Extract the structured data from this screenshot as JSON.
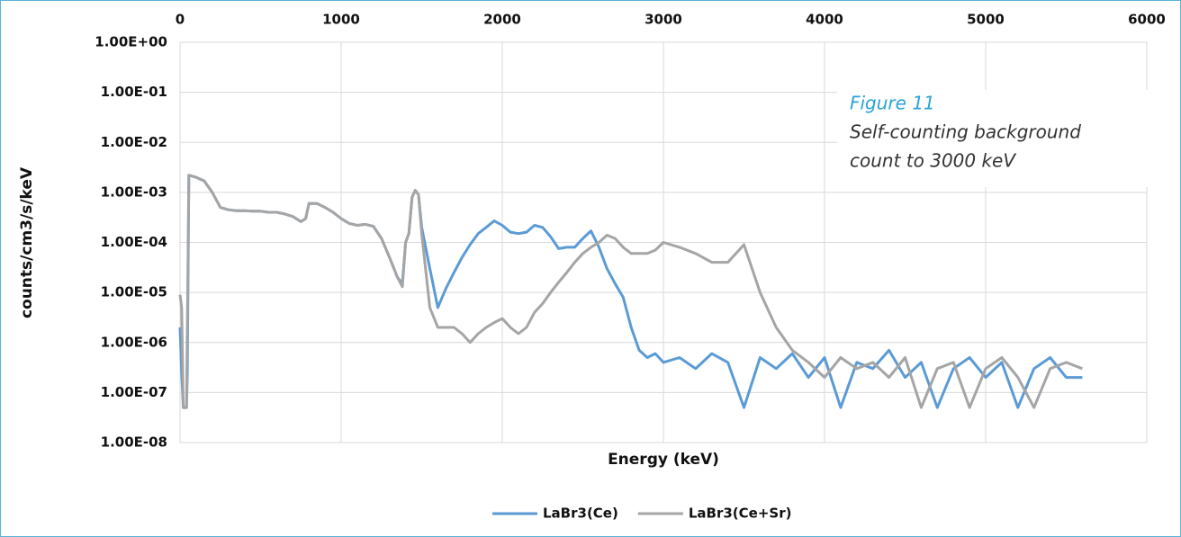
{
  "chart_data": {
    "type": "line",
    "x_label": "Energy (keV)",
    "y_label": "counts/cm3/s/keV",
    "annotation": {
      "title": "Figure 11",
      "lines": [
        "Self-counting background",
        "count to 3000 keV"
      ]
    },
    "log_y": true,
    "grid": true,
    "x_axis_position": "top",
    "legend": "bottom",
    "xlim": [
      0,
      6000
    ],
    "xticks": [
      0,
      1000,
      2000,
      3000,
      4000,
      5000,
      6000
    ],
    "ylim": [
      1e-08,
      1
    ],
    "yticks": [
      {
        "value": 1,
        "label": "1.00E+00"
      },
      {
        "value": 0.1,
        "label": "1.00E-01"
      },
      {
        "value": 0.01,
        "label": "1.00E-02"
      },
      {
        "value": 0.001,
        "label": "1.00E-03"
      },
      {
        "value": 0.0001,
        "label": "1.00E-04"
      },
      {
        "value": 1e-05,
        "label": "1.00E-05"
      },
      {
        "value": 1e-06,
        "label": "1.00E-06"
      },
      {
        "value": 1e-07,
        "label": "1.00E-07"
      },
      {
        "value": 1e-08,
        "label": "1.00E-08"
      }
    ],
    "x": [
      0,
      10,
      20,
      40,
      45,
      55,
      100,
      150,
      200,
      250,
      300,
      350,
      400,
      450,
      500,
      550,
      600,
      650,
      700,
      750,
      780,
      800,
      850,
      900,
      950,
      1000,
      1050,
      1100,
      1150,
      1200,
      1250,
      1300,
      1350,
      1380,
      1400,
      1420,
      1440,
      1460,
      1480,
      1500,
      1550,
      1600,
      1650,
      1700,
      1750,
      1800,
      1850,
      1900,
      1950,
      2000,
      2050,
      2100,
      2150,
      2200,
      2250,
      2300,
      2350,
      2400,
      2450,
      2500,
      2550,
      2600,
      2650,
      2700,
      2750,
      2800,
      2850,
      2900,
      2950,
      3000,
      3100,
      3200,
      3300,
      3400,
      3500,
      3600,
      3700,
      3800,
      3900,
      4000,
      4100,
      4200,
      4300,
      4400,
      4500,
      4600,
      4700,
      4800,
      4900,
      5000,
      5100,
      5200,
      5300,
      5400,
      5500,
      5600
    ],
    "series": [
      {
        "name": "LaBr3(Ce)",
        "color": "#5b9bd5",
        "values": [
          2e-06,
          2.5e-07,
          5e-08,
          5e-08,
          2.5e-07,
          0.0022,
          0.002,
          0.0017,
          0.001,
          0.0005,
          0.00045,
          0.00043,
          0.00043,
          0.00042,
          0.00042,
          0.0004,
          0.0004,
          0.00037,
          0.00033,
          0.00026,
          0.0003,
          0.0006,
          0.0006,
          0.0005,
          0.0004,
          0.0003,
          0.00024,
          0.00022,
          0.00023,
          0.00021,
          0.00012,
          5e-05,
          2e-05,
          1.5e-05,
          0.0001,
          0.00015,
          0.0008,
          0.0011,
          0.0009,
          0.0002,
          3e-05,
          5e-06,
          1.2e-05,
          2.5e-05,
          5e-05,
          9e-05,
          0.00015,
          0.0002,
          0.00027,
          0.00022,
          0.00016,
          0.00015,
          0.00016,
          0.00022,
          0.0002,
          0.00013,
          7.5e-05,
          8e-05,
          8e-05,
          0.00012,
          0.00017,
          8e-05,
          3e-05,
          1.5e-05,
          8e-06,
          2e-06,
          7e-07,
          5e-07,
          6e-07,
          4e-07,
          5e-07,
          3e-07,
          6e-07,
          4e-07,
          5e-08,
          5e-07,
          3e-07,
          6e-07,
          2e-07,
          5e-07,
          5e-08,
          4e-07,
          3e-07,
          7e-07,
          2e-07,
          4e-07,
          5e-08,
          3e-07,
          5e-07,
          2e-07,
          4e-07,
          5e-08,
          3e-07,
          5e-07,
          2e-07,
          2e-07
        ]
      },
      {
        "name": "LaBr3(Ce+Sr)",
        "color": "#a5a5a5",
        "values": [
          9e-06,
          5e-06,
          5e-08,
          5e-08,
          2e-06,
          0.0022,
          0.002,
          0.0017,
          0.001,
          0.0005,
          0.00045,
          0.00043,
          0.00043,
          0.00042,
          0.00042,
          0.0004,
          0.0004,
          0.00037,
          0.00033,
          0.00026,
          0.0003,
          0.0006,
          0.0006,
          0.0005,
          0.0004,
          0.0003,
          0.00024,
          0.00022,
          0.00023,
          0.00021,
          0.00012,
          5e-05,
          2e-05,
          1.3e-05,
          0.0001,
          0.00015,
          0.0008,
          0.0011,
          0.0009,
          0.00015,
          5e-06,
          2e-06,
          2e-06,
          2e-06,
          1.5e-06,
          1e-06,
          1.5e-06,
          2e-06,
          2.5e-06,
          3e-06,
          2e-06,
          1.5e-06,
          2e-06,
          4e-06,
          6e-06,
          1e-05,
          1.6e-05,
          2.5e-05,
          4e-05,
          6e-05,
          8e-05,
          0.0001,
          0.00014,
          0.00012,
          8e-05,
          6e-05,
          6e-05,
          6e-05,
          7e-05,
          0.0001,
          8e-05,
          6e-05,
          4e-05,
          4e-05,
          9e-05,
          1e-05,
          2e-06,
          7e-07,
          4e-07,
          2e-07,
          5e-07,
          3e-07,
          4e-07,
          2e-07,
          5e-07,
          5e-08,
          3e-07,
          4e-07,
          5e-08,
          3e-07,
          5e-07,
          2e-07,
          5e-08,
          3e-07,
          4e-07,
          3e-07
        ]
      }
    ]
  }
}
